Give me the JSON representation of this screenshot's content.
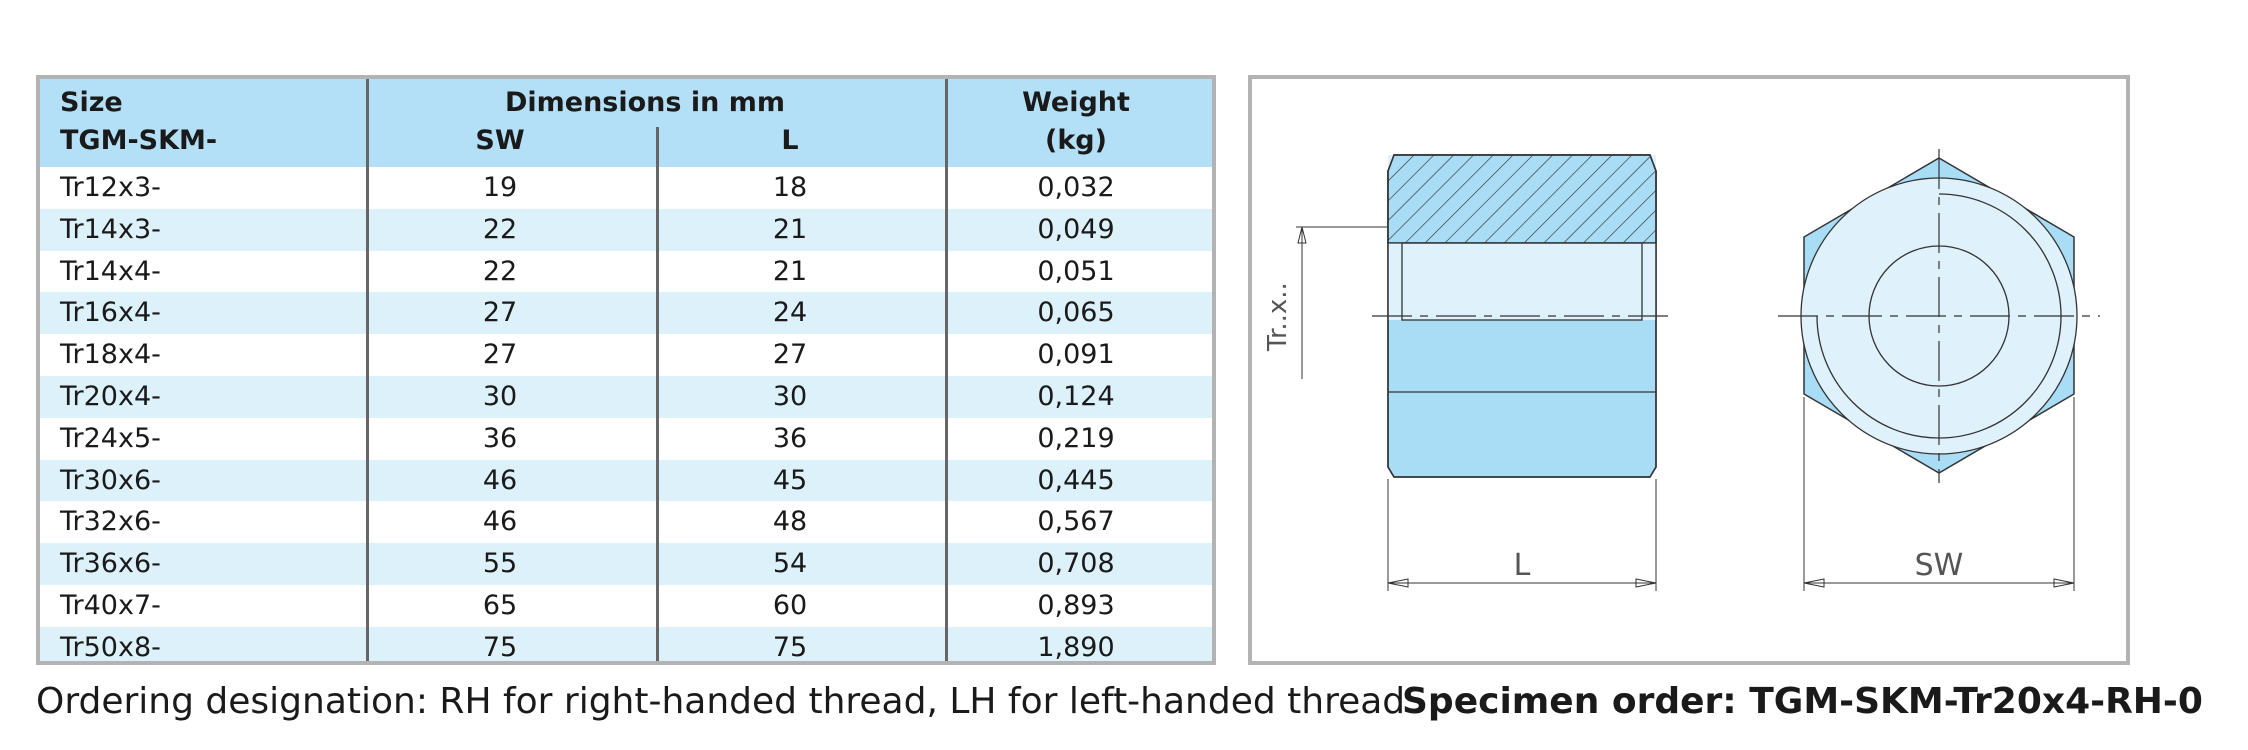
{
  "table": {
    "headers": {
      "size_line1": "Size",
      "size_line2": "TGM-SKM-",
      "dimensions": "Dimensions in mm",
      "sw": "SW",
      "l": "L",
      "weight_line1": "Weight",
      "weight_line2": "(kg)"
    },
    "rows": [
      {
        "size": "Tr12x3-",
        "sw": "19",
        "l": "18",
        "weight": "0,032"
      },
      {
        "size": "Tr14x3-",
        "sw": "22",
        "l": "21",
        "weight": "0,049"
      },
      {
        "size": "Tr14x4-",
        "sw": "22",
        "l": "21",
        "weight": "0,051"
      },
      {
        "size": "Tr16x4-",
        "sw": "27",
        "l": "24",
        "weight": "0,065"
      },
      {
        "size": "Tr18x4-",
        "sw": "27",
        "l": "27",
        "weight": "0,091"
      },
      {
        "size": "Tr20x4-",
        "sw": "30",
        "l": "30",
        "weight": "0,124"
      },
      {
        "size": "Tr24x5-",
        "sw": "36",
        "l": "36",
        "weight": "0,219"
      },
      {
        "size": "Tr30x6-",
        "sw": "46",
        "l": "45",
        "weight": "0,445"
      },
      {
        "size": "Tr32x6-",
        "sw": "46",
        "l": "48",
        "weight": "0,567"
      },
      {
        "size": "Tr36x6-",
        "sw": "55",
        "l": "54",
        "weight": "0,708"
      },
      {
        "size": "Tr40x7-",
        "sw": "65",
        "l": "60",
        "weight": "0,893"
      },
      {
        "size": "Tr50x8-",
        "sw": "75",
        "l": "75",
        "weight": "1,890"
      }
    ]
  },
  "drawing": {
    "thread_label": "Tr..x..",
    "length_label": "L",
    "width_label": "SW"
  },
  "footer": {
    "ordering_designation": "Ordering designation: RH for right-handed thread, LH for left-handed thread",
    "specimen_order": "Specimen order: TGM-SKM-Tr20x4-RH-0"
  },
  "colors": {
    "header_blue": "#b3e0f7",
    "row_alt_blue": "#ddf1fb",
    "part_blue": "#a9dcf5",
    "part_light_blue": "#dff1fb",
    "border_gray": "#b3b3b3"
  }
}
